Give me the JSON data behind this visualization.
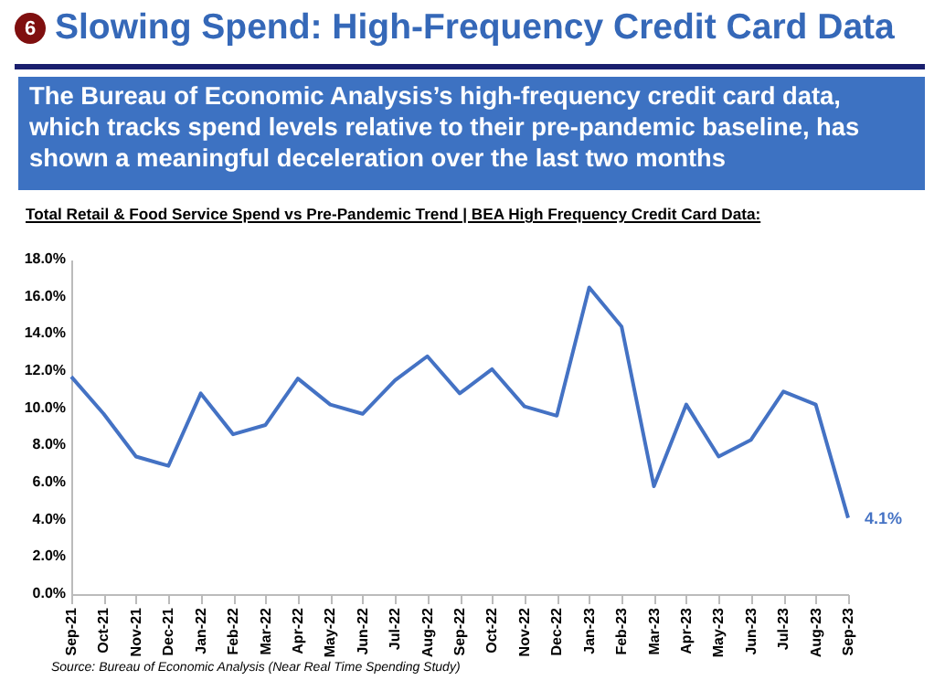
{
  "chart_data": {
    "type": "line",
    "title": "Slowing Spend: High-Frequency Credit Card Data",
    "subtitle": "The Bureau of Economic Analysis’s high-frequency credit card data, which tracks spend levels relative to their pre-pandemic baseline, has shown a meaningful deceleration over the last two months",
    "annotations": [
      "6",
      "Total Retail & Food Service Spend vs Pre-Pandemic Trend | BEA High Frequency Credit Card Data:",
      "Source: Bureau of Economic Analysis (Near Real Time Spending Study)"
    ],
    "categories": [
      "Sep-21",
      "Oct-21",
      "Nov-21",
      "Dec-21",
      "Jan-22",
      "Feb-22",
      "Mar-22",
      "Apr-22",
      "May-22",
      "Jun-22",
      "Jul-22",
      "Aug-22",
      "Sep-22",
      "Oct-22",
      "Nov-22",
      "Dec-22",
      "Jan-23",
      "Feb-23",
      "Mar-23",
      "Apr-23",
      "May-23",
      "Jun-23",
      "Jul-23",
      "Aug-23",
      "Sep-23"
    ],
    "series": [
      {
        "color": "#4472c4",
        "values": [
          11.7,
          9.7,
          7.4,
          6.9,
          10.8,
          8.6,
          9.1,
          11.6,
          10.2,
          9.7,
          11.5,
          12.8,
          10.8,
          12.1,
          10.1,
          9.6,
          16.5,
          14.4,
          5.8,
          10.2,
          7.4,
          8.3,
          10.9,
          10.2,
          4.1
        ],
        "value_labels": [
          null,
          null,
          null,
          null,
          null,
          null,
          null,
          null,
          null,
          null,
          null,
          null,
          null,
          null,
          null,
          null,
          null,
          null,
          null,
          null,
          null,
          null,
          null,
          null,
          "4.1%"
        ]
      }
    ],
    "ylim": [
      0,
      18
    ],
    "yticks": [
      {
        "value": 0,
        "label": "0.0%"
      },
      {
        "value": 2,
        "label": "2.0%"
      },
      {
        "value": 4,
        "label": "4.0%"
      },
      {
        "value": 6,
        "label": "6.0%"
      },
      {
        "value": 8,
        "label": "8.0%"
      },
      {
        "value": 10,
        "label": "10.0%"
      },
      {
        "value": 12,
        "label": "12.0%"
      },
      {
        "value": 14,
        "label": "14.0%"
      },
      {
        "value": 16,
        "label": "16.0%"
      },
      {
        "value": 18,
        "label": "18.0%"
      }
    ],
    "grid": false,
    "marker": "none",
    "line_style": "solid"
  }
}
